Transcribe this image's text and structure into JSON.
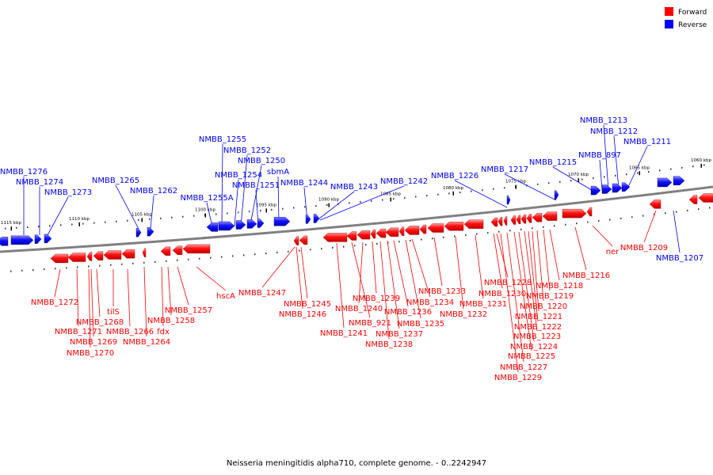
{
  "legend": [
    {
      "label": "Forward",
      "color": "#ff0000"
    },
    {
      "label": "Reverse",
      "color": "#0000ff"
    }
  ],
  "caption": "Neisseria meningitidis alpha710, complete genome. - 0..2242947",
  "colors": {
    "forward": "#ff0000",
    "reverse": "#0000ff",
    "backbone": "#808080"
  },
  "scale_labels": [
    "1115 kbp",
    "1110 kbp",
    "1105 kbp",
    "1100 kbp",
    "1095 kbp",
    "1090 kbp",
    "1085 kbp",
    "1080 kbp",
    "1075 kbp",
    "1070 kbp",
    "1065 kbp",
    "1060 kbp"
  ],
  "reverse_genes": [
    "NMBB_1276",
    "NMBB_1274",
    "NMBB_1273",
    "NMBB_1265",
    "NMBB_1262",
    "NMBB_1255",
    "NMBB_1252",
    "NMBB_1250",
    "NMBB_1254",
    "NMBB_1251",
    "sbmA",
    "NMBB_1255A",
    "NMBB_1244",
    "NMBB_1243",
    "NMBB_1242",
    "NMBB_1226",
    "NMBB_1217",
    "NMBB_1215",
    "NMBB_1213",
    "NMBB_1212",
    "NMBB_1211",
    "NMBB_897",
    "NMBB_1207"
  ],
  "forward_genes": [
    "NMBB_1209",
    "ner",
    "NMBB_1216",
    "NMBB_1218",
    "NMBB_1219",
    "NMBB_1220",
    "NMBB_1221",
    "NMBB_1222",
    "NMBB_1223",
    "NMBB_1224",
    "NMBB_1225",
    "NMBB_1227",
    "NMBB_1229",
    "NMBB_1228",
    "NMBB_1230",
    "NMBB_1231",
    "NMBB_1232",
    "NMBB_1233",
    "NMBB_1234",
    "NMBB_1235",
    "NMBB_1236",
    "NMBB_1237",
    "NMBB_1238",
    "NMBB_1239",
    "NMBB_1240",
    "NMBB_921",
    "NMBB_1241",
    "NMBB_1245",
    "NMBB_1246",
    "NMBB_1247",
    "hscA",
    "NMBB_1257",
    "NMBB_1258",
    "fdx",
    "NMBB_1264",
    "NMBB_1266",
    "tilS",
    "NMBB_1268",
    "NMBB_1269",
    "NMBB_1270",
    "NMBB_1271",
    "NMBB_1272"
  ]
}
